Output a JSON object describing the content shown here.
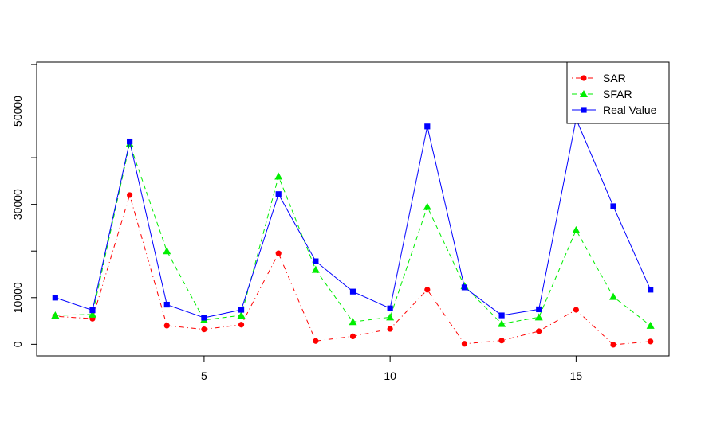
{
  "chart_data": {
    "type": "line",
    "title": "",
    "xlabel": "",
    "ylabel": "",
    "x": [
      1,
      2,
      3,
      4,
      5,
      6,
      7,
      8,
      9,
      10,
      11,
      12,
      13,
      14,
      15,
      16,
      17
    ],
    "xlim": [
      0.5,
      17.5
    ],
    "ylim": [
      -2500,
      60500
    ],
    "xticks": [
      5,
      10,
      15
    ],
    "yticks": [
      0,
      10000,
      30000,
      50000
    ],
    "grid": false,
    "legend_position": "top-right",
    "series": [
      {
        "name": "SAR",
        "color": "#ff0000",
        "line_style": "dotdash",
        "marker": "circle",
        "values": [
          6000,
          5500,
          32000,
          4000,
          3200,
          4200,
          19500,
          700,
          1700,
          3300,
          11700,
          100,
          800,
          2800,
          7400,
          -100,
          600
        ]
      },
      {
        "name": "SFAR",
        "color": "#00ee00",
        "line_style": "dashed",
        "marker": "triangle",
        "values": [
          6200,
          6400,
          43000,
          20000,
          5200,
          6200,
          36000,
          16000,
          4800,
          5800,
          29500,
          12500,
          4400,
          5800,
          24500,
          10200,
          4000
        ]
      },
      {
        "name": "Real Value",
        "color": "#0000ff",
        "line_style": "solid",
        "marker": "square",
        "values": [
          10000,
          7300,
          43500,
          8500,
          5700,
          7400,
          32200,
          17800,
          11300,
          7700,
          46700,
          12200,
          6200,
          7500,
          48300,
          29600,
          11700
        ]
      }
    ]
  }
}
